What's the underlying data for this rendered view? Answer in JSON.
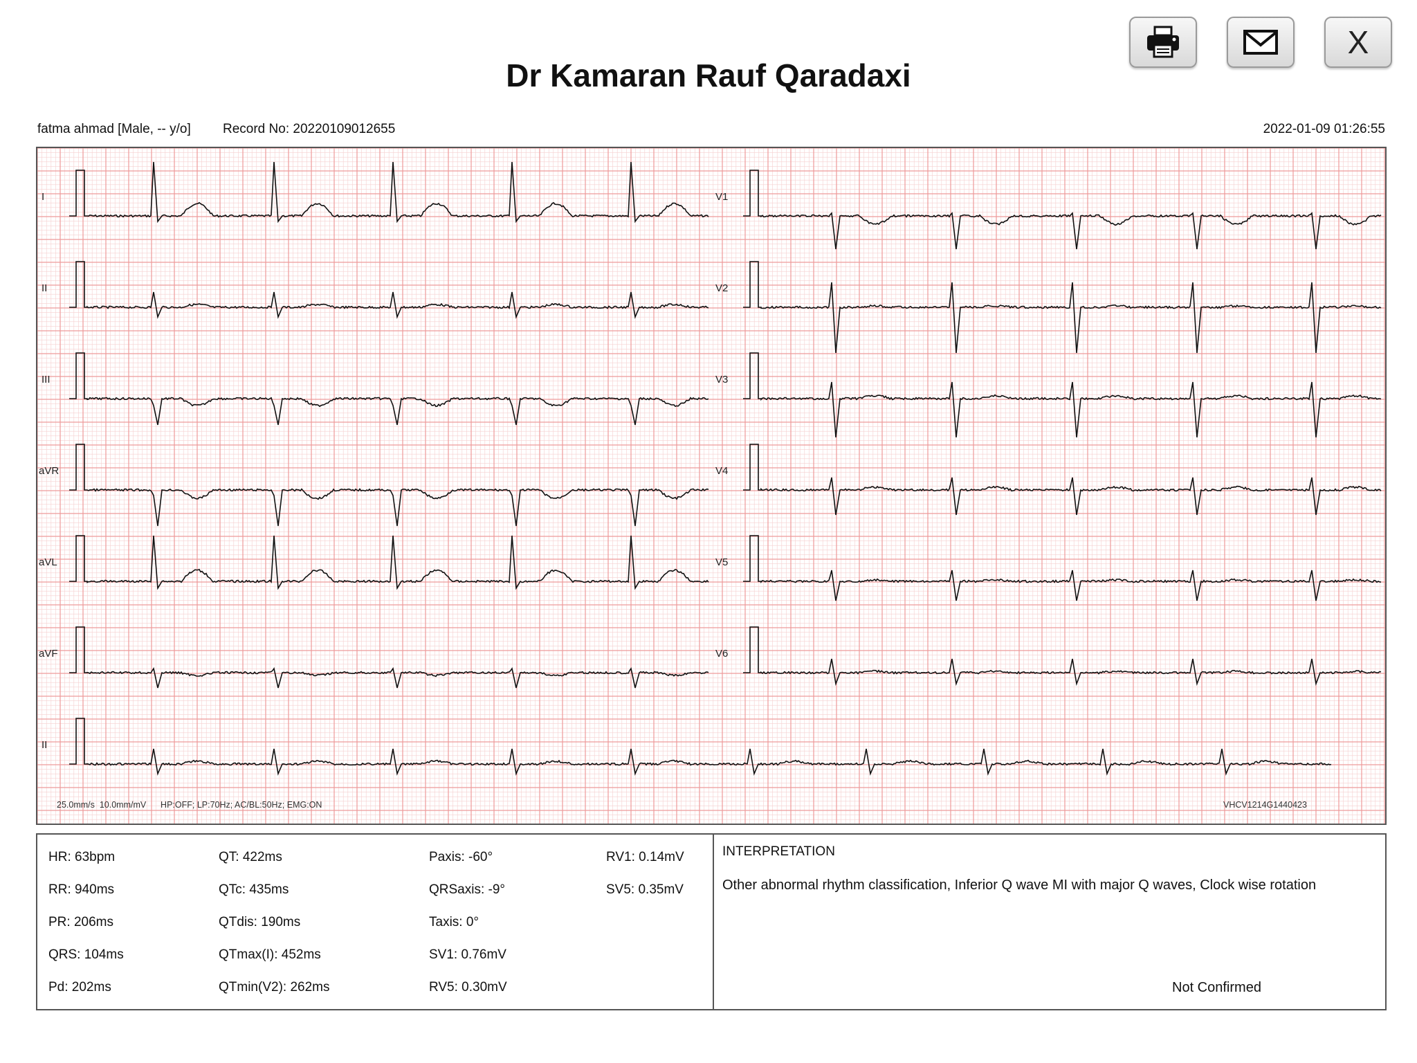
{
  "toolbar": {
    "print_icon": "printer-icon",
    "email_icon": "envelope-icon",
    "close_label": "X"
  },
  "header": {
    "title": "Dr Kamaran Rauf Qaradaxi"
  },
  "patient": {
    "info": "fatma ahmad [Male, -- y/o]",
    "record": "Record No: 20220109012655",
    "datetime": "2022-01-09 01:26:55"
  },
  "ecg": {
    "grid_minor_color": "#f6cfcf",
    "grid_major_color": "#ee9a9a",
    "trace_color": "#111111",
    "leads_left": [
      "I",
      "II",
      "III",
      "aVR",
      "aVL",
      "aVF"
    ],
    "leads_right": [
      "V1",
      "V2",
      "V3",
      "V4",
      "V5",
      "V6"
    ],
    "rhythm_lead": "II",
    "settings_note": "25.0mm/s  10.0mm/mV      HP:OFF; LP:70Hz; AC/BL:50Hz; EMG:ON",
    "device_id": "VHCV1214G1440423"
  },
  "measurements": [
    "HR: 63bpm",
    "RR: 940ms",
    "PR: 206ms",
    "QRS: 104ms",
    "Pd: 202ms",
    "QT: 422ms",
    "QTc: 435ms",
    "QTdis: 190ms",
    "QTmax(I): 452ms",
    "QTmin(V2): 262ms",
    "Paxis: -60°",
    "QRSaxis: -9°",
    "Taxis: 0°",
    "SV1: 0.76mV",
    "RV5: 0.30mV",
    "RV1: 0.14mV",
    "SV5: 0.35mV"
  ],
  "interpretation": {
    "heading": "INTERPRETATION",
    "text": "Other abnormal rhythm classification, Inferior Q wave MI with major Q waves, Clock wise rotation",
    "status": "Not Confirmed"
  }
}
